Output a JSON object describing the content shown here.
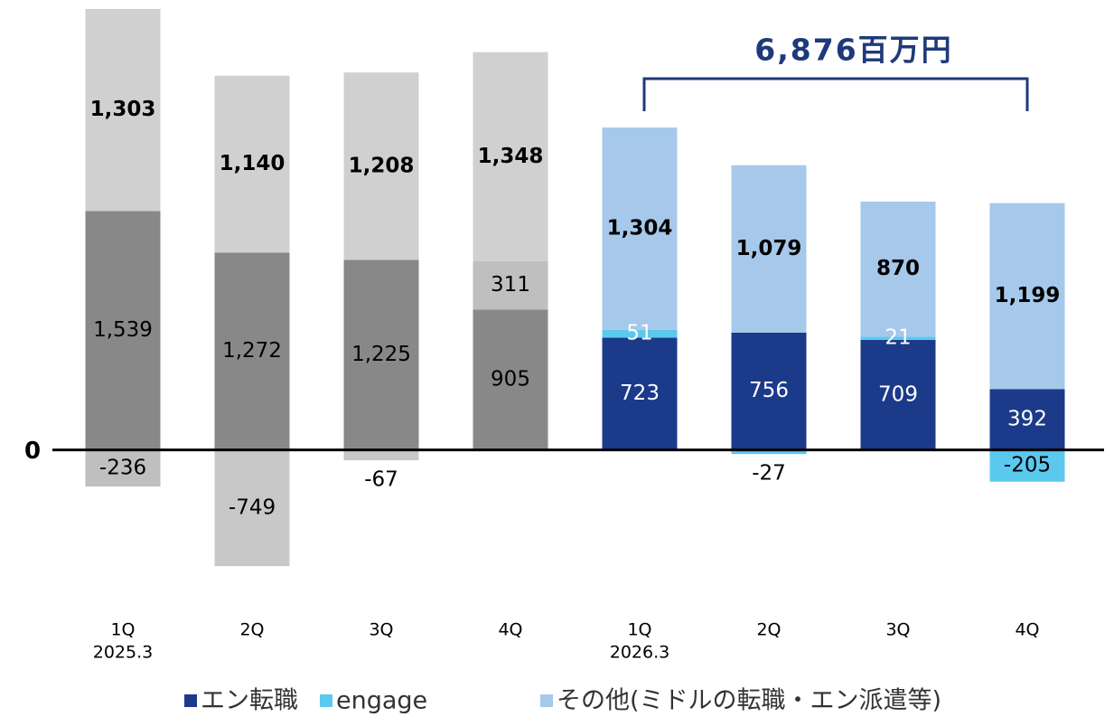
{
  "chart_data": {
    "type": "stacked_bar",
    "categories": [
      "1Q",
      "2Q",
      "3Q",
      "4Q",
      "1Q",
      "2Q",
      "3Q",
      "4Q"
    ],
    "periods": [
      "2025.3",
      null,
      null,
      null,
      "2026.3",
      null,
      null,
      null
    ],
    "series": [
      {
        "name": "エン転職",
        "color": "#1b3a8a",
        "colors": [
          "#888888",
          "#888888",
          "#888888",
          "#888888",
          "#1b3a8a",
          "#1b3a8a",
          "#1b3a8a",
          "#1b3a8a"
        ],
        "values": [
          1539,
          1272,
          1225,
          905,
          723,
          756,
          709,
          392
        ],
        "value_labels": [
          "1,539",
          "1,272",
          "1,225",
          "905",
          "723",
          "756",
          "709",
          "392"
        ]
      },
      {
        "name": "engage",
        "color": "#5bc8ee",
        "colors": [
          "#bfbfbf",
          "#c8c8c8",
          "#c8c8c8",
          "#bfbfbf",
          "#5bc8ee",
          "#5bc8ee",
          "#5bc8ee",
          "#5bc8ee"
        ],
        "values": [
          -236,
          -749,
          -67,
          311,
          51,
          -27,
          21,
          -205
        ],
        "value_labels": [
          "-236",
          "-749",
          "-67",
          "311",
          "51",
          "-27",
          "21",
          "-205"
        ]
      },
      {
        "name": "その他(ミドルの転職・エン派遣等)",
        "color": "#a6c8ea",
        "colors": [
          "#d0d0d0",
          "#d0d0d0",
          "#d0d0d0",
          "#d0d0d0",
          "#a6c8ea",
          "#a6c8ea",
          "#a6c8ea",
          "#a6c8ea"
        ],
        "values": [
          1303,
          1140,
          1208,
          1348,
          1304,
          1079,
          870,
          1199
        ],
        "value_labels": [
          "1,303",
          "1,140",
          "1,208",
          "1,348",
          "1,304",
          "1,079",
          "870",
          "1,199"
        ]
      }
    ],
    "annotation": "6,876百万円",
    "ylim": [
      -900,
      2900
    ],
    "yticks": [
      0
    ]
  }
}
